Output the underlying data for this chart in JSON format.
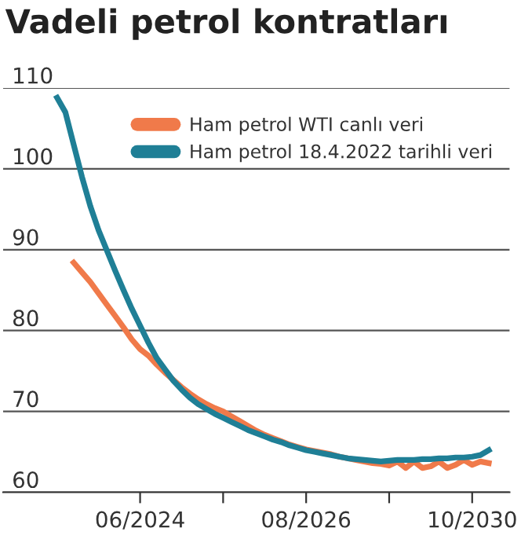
{
  "chart_data": {
    "type": "line",
    "title": "Vadeli petrol kontratları",
    "categories": [
      null,
      null,
      null,
      null,
      null,
      null,
      null,
      null,
      null,
      null,
      "06/2024",
      null,
      null,
      null,
      null,
      null,
      null,
      null,
      null,
      null,
      null,
      null,
      null,
      null,
      null,
      null,
      null,
      null,
      null,
      null,
      "08/2026",
      null,
      null,
      null,
      null,
      null,
      null,
      null,
      null,
      null,
      null,
      null,
      null,
      null,
      null,
      null,
      null,
      null,
      null,
      null,
      "10/2030",
      null,
      null
    ],
    "series": [
      {
        "name": "Ham petrol WTI canlı veri",
        "color": "#f07a4a",
        "values": [
          null,
          null,
          88.4,
          87.2,
          86,
          84.6,
          83.2,
          81.8,
          80.4,
          78.9,
          77.7,
          76.9,
          75.8,
          74.8,
          73.9,
          73,
          72.2,
          71.5,
          70.9,
          70.4,
          70,
          69.4,
          68.8,
          68.2,
          67.6,
          67.1,
          66.7,
          66.3,
          65.9,
          65.6,
          65.3,
          65.1,
          64.9,
          64.7,
          64.4,
          64.2,
          64,
          63.8,
          63.6,
          63.5,
          63.3,
          63.8,
          63,
          63.8,
          63,
          63.2,
          63.8,
          63,
          63.4,
          64,
          63.4,
          63.8,
          63.6
        ]
      },
      {
        "name": "Ham petrol 18.4.2022 tarihli veri",
        "color": "#1f7f96",
        "values": [
          108.8,
          107,
          103,
          99,
          95.4,
          92.4,
          89.9,
          87.4,
          85,
          82.7,
          80.6,
          78.5,
          76.6,
          75.2,
          73.8,
          72.7,
          71.7,
          70.9,
          70.3,
          69.7,
          69.2,
          68.7,
          68.2,
          67.7,
          67.3,
          66.9,
          66.5,
          66.2,
          65.8,
          65.5,
          65.2,
          65,
          64.8,
          64.6,
          64.4,
          64.2,
          64.1,
          64,
          63.9,
          63.8,
          63.9,
          64,
          64,
          64,
          64.1,
          64.1,
          64.2,
          64.2,
          64.3,
          64.3,
          64.4,
          64.6,
          65.2
        ]
      }
    ],
    "ylim": [
      60,
      110
    ],
    "yticks": [
      60,
      70,
      80,
      90,
      100,
      110
    ],
    "grid": "y",
    "legend": "top right",
    "marker": "none",
    "line_style": "solid"
  }
}
